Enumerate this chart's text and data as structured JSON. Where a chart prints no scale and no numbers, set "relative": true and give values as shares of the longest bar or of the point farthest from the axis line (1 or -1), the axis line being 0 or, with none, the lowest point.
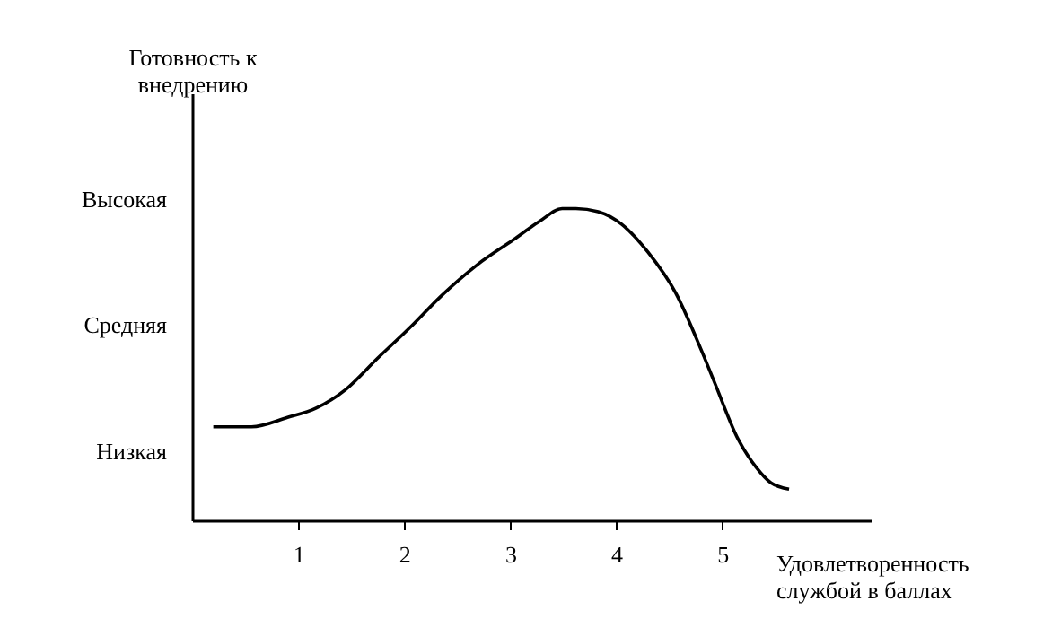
{
  "chart_data": {
    "type": "line",
    "relative": true,
    "xlabel": "Удовлетворенность\nслужбой в баллах",
    "ylabel": "Готовность к\nвнедрению",
    "annotations": [
      "Низкая",
      "Средняя",
      "Высокая"
    ],
    "x": [
      0.2,
      0.56,
      0.9,
      1.17,
      1.45,
      1.75,
      2.06,
      2.35,
      2.69,
      3.03,
      3.28,
      3.49,
      3.62,
      3.83,
      4.05,
      4.3,
      4.56,
      4.81,
      4.93,
      5.15,
      5.32,
      5.46,
      5.63
    ],
    "series": [
      {
        "color": "#000000",
        "values": [
          0.3,
          0.3,
          0.33,
          0.36,
          0.42,
          0.52,
          0.62,
          0.72,
          0.82,
          0.9,
          0.96,
          1.0,
          1.0,
          0.99,
          0.95,
          0.86,
          0.73,
          0.54,
          0.44,
          0.26,
          0.17,
          0.12,
          0.1
        ]
      }
    ],
    "xlim": [
      0,
      6.4
    ],
    "xticks": [
      1,
      2,
      3,
      4,
      5
    ],
    "grid": false,
    "marker": "none",
    "line_style": "solid"
  }
}
